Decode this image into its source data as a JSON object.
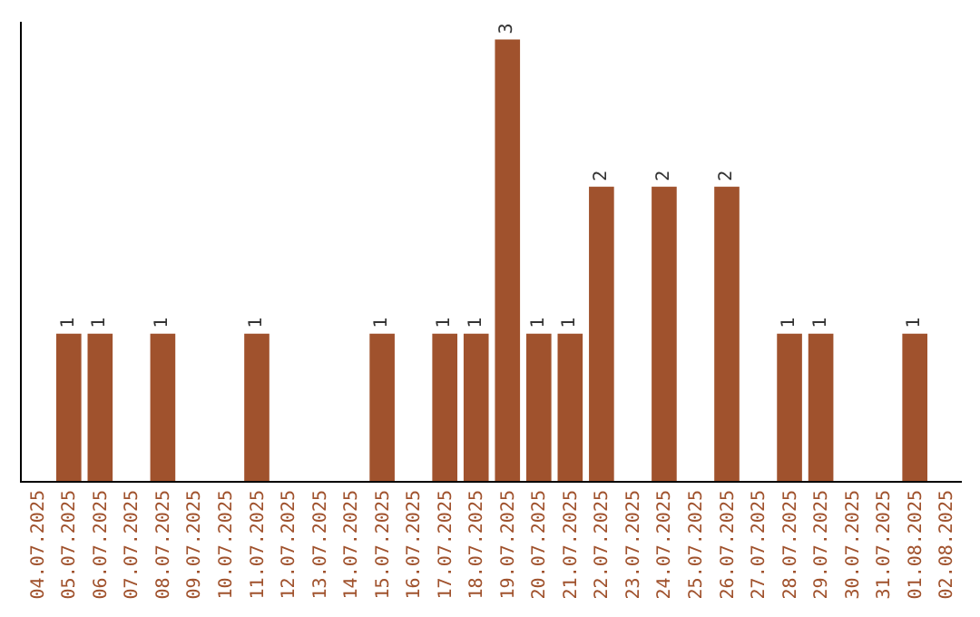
{
  "chart_data": {
    "type": "bar",
    "categories": [
      "04.07.2025",
      "05.07.2025",
      "06.07.2025",
      "07.07.2025",
      "08.07.2025",
      "09.07.2025",
      "10.07.2025",
      "11.07.2025",
      "12.07.2025",
      "13.07.2025",
      "14.07.2025",
      "15.07.2025",
      "16.07.2025",
      "17.07.2025",
      "18.07.2025",
      "19.07.2025",
      "20.07.2025",
      "21.07.2025",
      "22.07.2025",
      "23.07.2025",
      "24.07.2025",
      "25.07.2025",
      "26.07.2025",
      "27.07.2025",
      "28.07.2025",
      "29.07.2025",
      "30.07.2025",
      "31.07.2025",
      "01.08.2025",
      "02.08.2025"
    ],
    "values": [
      null,
      1,
      1,
      null,
      1,
      null,
      null,
      1,
      null,
      null,
      null,
      1,
      null,
      1,
      1,
      3,
      1,
      1,
      2,
      null,
      2,
      null,
      2,
      null,
      1,
      1,
      null,
      null,
      1,
      null
    ],
    "color": "#a0522d",
    "data_labels": true
  }
}
